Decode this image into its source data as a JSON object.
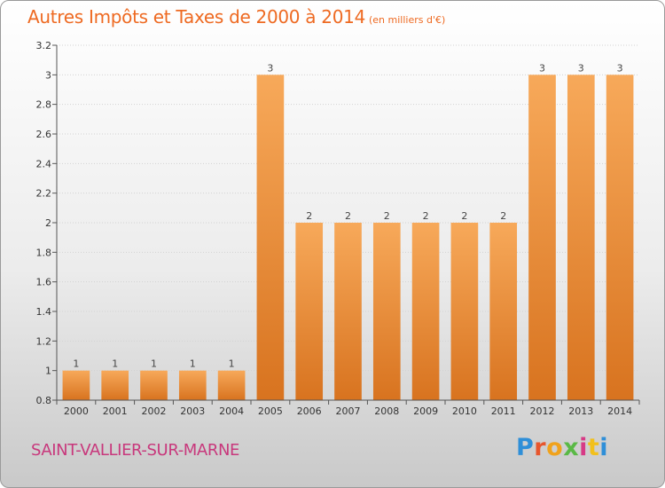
{
  "header": {
    "title": "Autres Impôts et Taxes de 2000 à 2014",
    "subtitle": "(en milliers d'€)"
  },
  "footer": {
    "commune": "SAINT-VALLIER-SUR-MARNE",
    "logo_letters": [
      "P",
      "r",
      "o",
      "x",
      "i",
      "t",
      "i"
    ]
  },
  "colors": {
    "bar_light": "#f7a95a",
    "bar_dark": "#d8731f",
    "title": "#ee6a22",
    "commune": "#c8387c"
  },
  "chart_data": {
    "type": "bar",
    "categories": [
      "2000",
      "2001",
      "2002",
      "2003",
      "2004",
      "2005",
      "2006",
      "2007",
      "2008",
      "2009",
      "2010",
      "2011",
      "2012",
      "2013",
      "2014"
    ],
    "values": [
      1,
      1,
      1,
      1,
      1,
      3,
      2,
      2,
      2,
      2,
      2,
      2,
      3,
      3,
      3
    ],
    "data_labels": [
      "1",
      "1",
      "1",
      "1",
      "1",
      "3",
      "2",
      "2",
      "2",
      "2",
      "2",
      "2",
      "3",
      "3",
      "3"
    ],
    "yticks": [
      0.8,
      1,
      1.2,
      1.4,
      1.6,
      1.8,
      2,
      2.2,
      2.4,
      2.6,
      2.8,
      3,
      3.2
    ],
    "ytick_labels": [
      "0.8",
      "1",
      "1.2",
      "1.4",
      "1.6",
      "1.8",
      "2",
      "2.2",
      "2.4",
      "2.6",
      "2.8",
      "3",
      "3.2"
    ],
    "ylim": [
      0.8,
      3.2
    ],
    "grid": "horizontal",
    "legend": "none"
  }
}
